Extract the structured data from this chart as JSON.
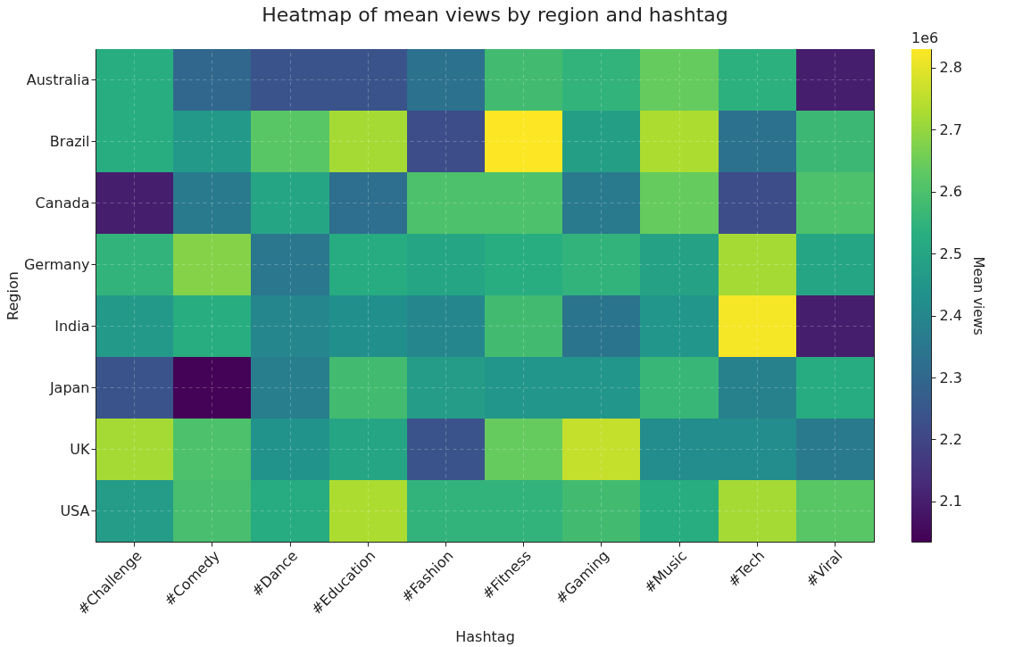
{
  "chart_data": {
    "type": "heatmap",
    "title": "Heatmap of mean views by region and hashtag",
    "xlabel": "Hashtag",
    "ylabel": "Region",
    "clabel": "Mean views",
    "annotations": [
      "1e6"
    ],
    "categories": [
      "#Challenge",
      "#Comedy",
      "#Dance",
      "#Education",
      "#Fashion",
      "#Fitness",
      "#Gaming",
      "#Music",
      "#Tech",
      "#Viral"
    ],
    "y_categories": [
      "Australia",
      "Brazil",
      "Canada",
      "Germany",
      "India",
      "Japan",
      "UK",
      "USA"
    ],
    "cells": [
      [
        2.53,
        2.3,
        2.24,
        2.24,
        2.33,
        2.58,
        2.55,
        2.64,
        2.54,
        2.1
      ],
      [
        2.53,
        2.46,
        2.62,
        2.72,
        2.22,
        2.83,
        2.48,
        2.73,
        2.33,
        2.57
      ],
      [
        2.1,
        2.36,
        2.5,
        2.32,
        2.6,
        2.6,
        2.36,
        2.64,
        2.22,
        2.6
      ],
      [
        2.55,
        2.68,
        2.35,
        2.52,
        2.5,
        2.53,
        2.55,
        2.49,
        2.72,
        2.5
      ],
      [
        2.46,
        2.53,
        2.4,
        2.43,
        2.4,
        2.58,
        2.34,
        2.45,
        2.82,
        2.1
      ],
      [
        2.24,
        2.04,
        2.37,
        2.58,
        2.47,
        2.45,
        2.45,
        2.56,
        2.38,
        2.52
      ],
      [
        2.72,
        2.6,
        2.44,
        2.5,
        2.24,
        2.64,
        2.76,
        2.42,
        2.42,
        2.36
      ],
      [
        2.47,
        2.59,
        2.52,
        2.73,
        2.55,
        2.55,
        2.58,
        2.53,
        2.72,
        2.62
      ]
    ],
    "clim": [
      2.035,
      2.83
    ],
    "cticks": [
      2.1,
      2.2,
      2.3,
      2.4,
      2.5,
      2.6,
      2.7,
      2.8
    ],
    "grid": true
  }
}
